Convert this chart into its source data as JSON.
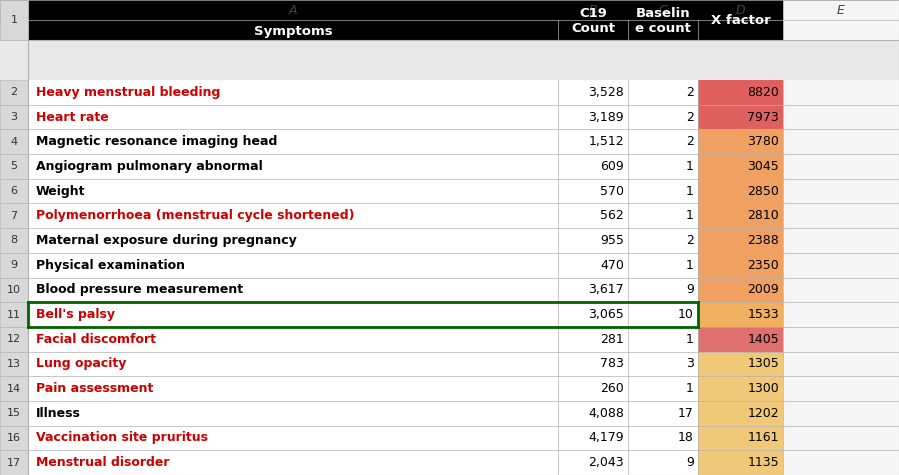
{
  "rows": [
    {
      "symptom": "Heavy menstrual bleeding",
      "c19": "3,528",
      "baseline": "2",
      "xfactor": 8820,
      "red": true
    },
    {
      "symptom": "Heart rate",
      "c19": "3,189",
      "baseline": "2",
      "xfactor": 7973,
      "red": true
    },
    {
      "symptom": "Magnetic resonance imaging head",
      "c19": "1,512",
      "baseline": "2",
      "xfactor": 3780,
      "red": false
    },
    {
      "symptom": "Angiogram pulmonary abnormal",
      "c19": "609",
      "baseline": "1",
      "xfactor": 3045,
      "red": false
    },
    {
      "symptom": "Weight",
      "c19": "570",
      "baseline": "1",
      "xfactor": 2850,
      "red": false
    },
    {
      "symptom": "Polymenorrhoea (menstrual cycle shortened)",
      "c19": "562",
      "baseline": "1",
      "xfactor": 2810,
      "red": true
    },
    {
      "symptom": "Maternal exposure during pregnancy",
      "c19": "955",
      "baseline": "2",
      "xfactor": 2388,
      "red": false
    },
    {
      "symptom": "Physical examination",
      "c19": "470",
      "baseline": "1",
      "xfactor": 2350,
      "red": false
    },
    {
      "symptom": "Blood pressure measurement",
      "c19": "3,617",
      "baseline": "9",
      "xfactor": 2009,
      "red": false
    },
    {
      "symptom": "Bell's palsy",
      "c19": "3,065",
      "baseline": "10",
      "xfactor": 1533,
      "red": true
    },
    {
      "symptom": "Facial discomfort",
      "c19": "281",
      "baseline": "1",
      "xfactor": 1405,
      "red": true
    },
    {
      "symptom": "Lung opacity",
      "c19": "783",
      "baseline": "3",
      "xfactor": 1305,
      "red": true
    },
    {
      "symptom": "Pain assessment",
      "c19": "260",
      "baseline": "1",
      "xfactor": 1300,
      "red": true
    },
    {
      "symptom": "Illness",
      "c19": "4,088",
      "baseline": "17",
      "xfactor": 1202,
      "red": false
    },
    {
      "symptom": "Vaccination site pruritus",
      "c19": "4,179",
      "baseline": "18",
      "xfactor": 1161,
      "red": true
    },
    {
      "symptom": "Menstrual disorder",
      "c19": "2,043",
      "baseline": "9",
      "xfactor": 1135,
      "red": true
    }
  ],
  "red_text": "#cc0000",
  "black_text": "#000000",
  "bells_palsy_index": 9,
  "bells_border_color": "#006400",
  "header_bg": "#000000",
  "header_text": "#ffffff",
  "col_a_bg": "#ffffff",
  "col_bc_bg": "#ffffff",
  "row_num_bg": "#d8d8d8",
  "col_letter_bg": "#e0e0e0",
  "col_e_bg": "#f5f5f5",
  "grid_color": "#b0b0b0",
  "xfactor_colors": {
    "8820": "#e06060",
    "7973": "#e06060",
    "3780": "#f0a060",
    "3045": "#f0a060",
    "2850": "#f0a060",
    "2810": "#f0a060",
    "2388": "#f0a060",
    "2350": "#f0a060",
    "2009": "#f0a060",
    "1533": "#f0b060",
    "1405": "#e07070",
    "1305": "#f0c878",
    "1300": "#f0c878",
    "1202": "#f0c878",
    "1161": "#f0c878",
    "1135": "#f0c878"
  },
  "fig_bg": "#e8e8e8"
}
